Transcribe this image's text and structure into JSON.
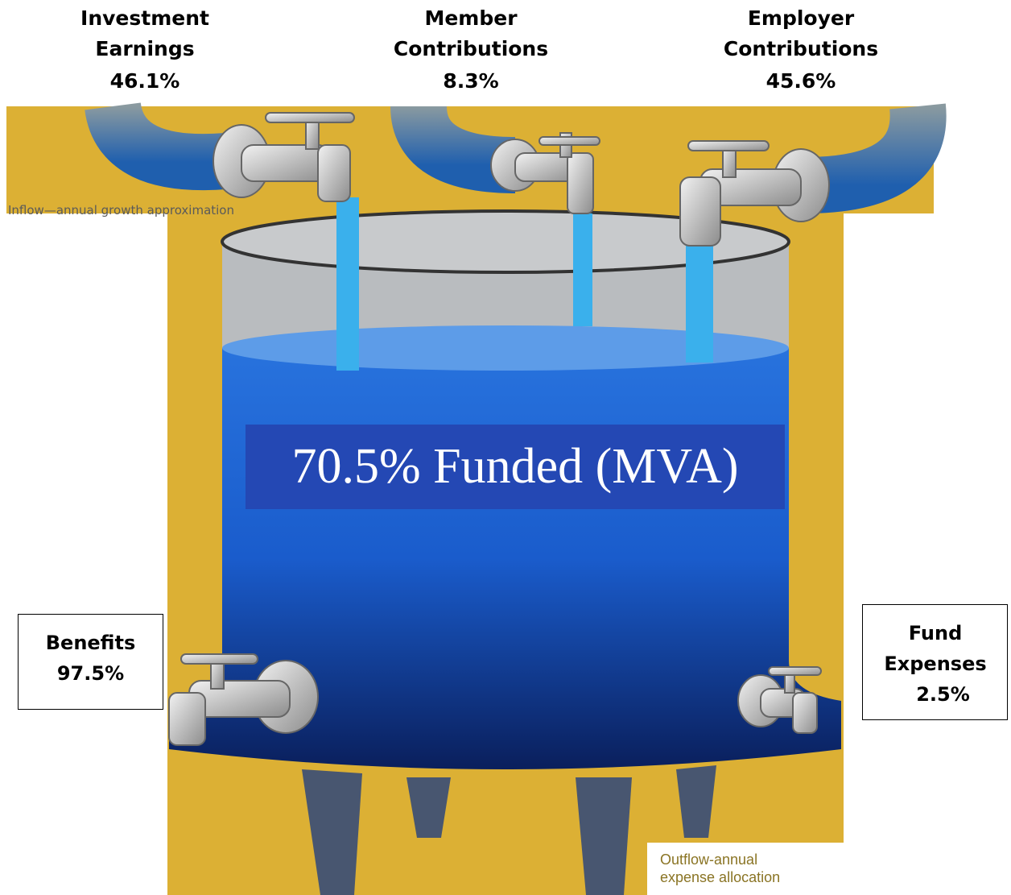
{
  "inflows": [
    {
      "label": "Investment Earnings",
      "value": "46.1%"
    },
    {
      "label": "Member Contributions",
      "value": "8.3%"
    },
    {
      "label": "Employer Contributions",
      "value": "45.6%"
    }
  ],
  "inflow_caption": "Inflow—annual growth approximation",
  "funded_label": "70.5% Funded (MVA)",
  "outflows": [
    {
      "label": "Benefits",
      "value": "97.5%"
    },
    {
      "label": "Fund Expenses",
      "value": "2.5%"
    }
  ],
  "outflow_caption": "Outflow-annual expense allocation"
}
